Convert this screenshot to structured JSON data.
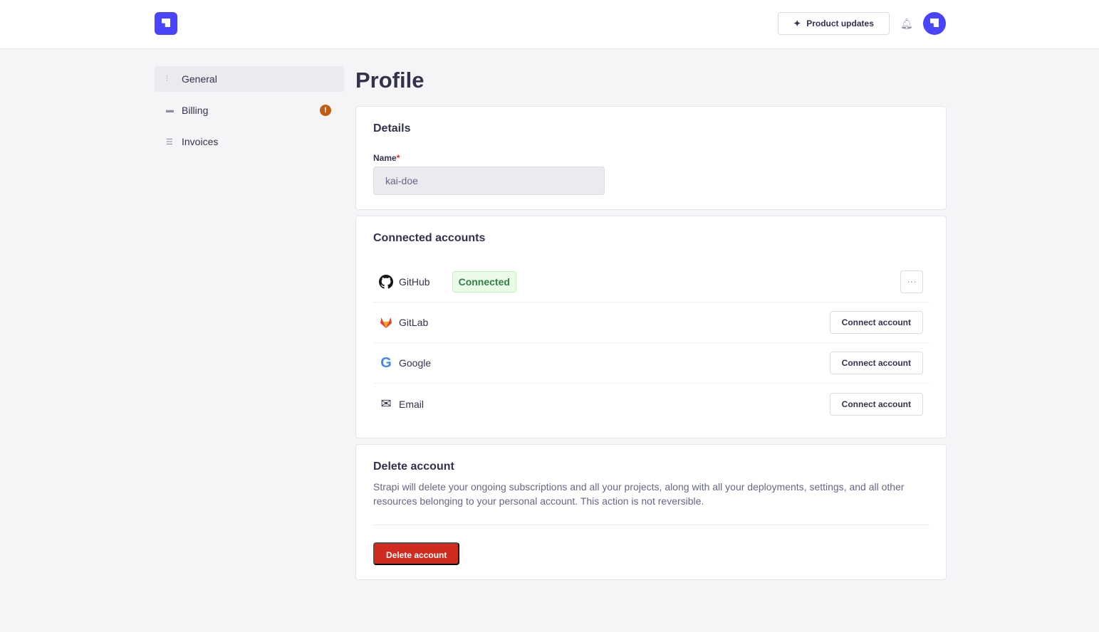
{
  "header": {
    "product_updates": "Product updates",
    "brand_color": "#4945ff"
  },
  "sidebar": {
    "items": [
      {
        "label": "General",
        "icon": "sliders-icon",
        "active": true
      },
      {
        "label": "Billing",
        "icon": "credit-card-icon",
        "badge": "!"
      },
      {
        "label": "Invoices",
        "icon": "invoice-icon"
      }
    ]
  },
  "page": {
    "title": "Profile"
  },
  "details": {
    "title": "Details",
    "name_label": "Name",
    "required_mark": "*",
    "name_value": "kai-doe"
  },
  "connected": {
    "title": "Connected accounts",
    "providers": [
      {
        "name": "GitHub",
        "status": "Connected",
        "action": "···"
      },
      {
        "name": "GitLab",
        "action": "Connect account"
      },
      {
        "name": "Google",
        "action": "Connect account"
      },
      {
        "name": "Email",
        "action": "Connect account"
      }
    ]
  },
  "delete": {
    "title": "Delete account",
    "description": "Strapi will delete your ongoing subscriptions and all your projects, along with all your deployments, settings, and all other resources belonging to your personal account. This action is not reversible.",
    "button": "Delete account"
  }
}
